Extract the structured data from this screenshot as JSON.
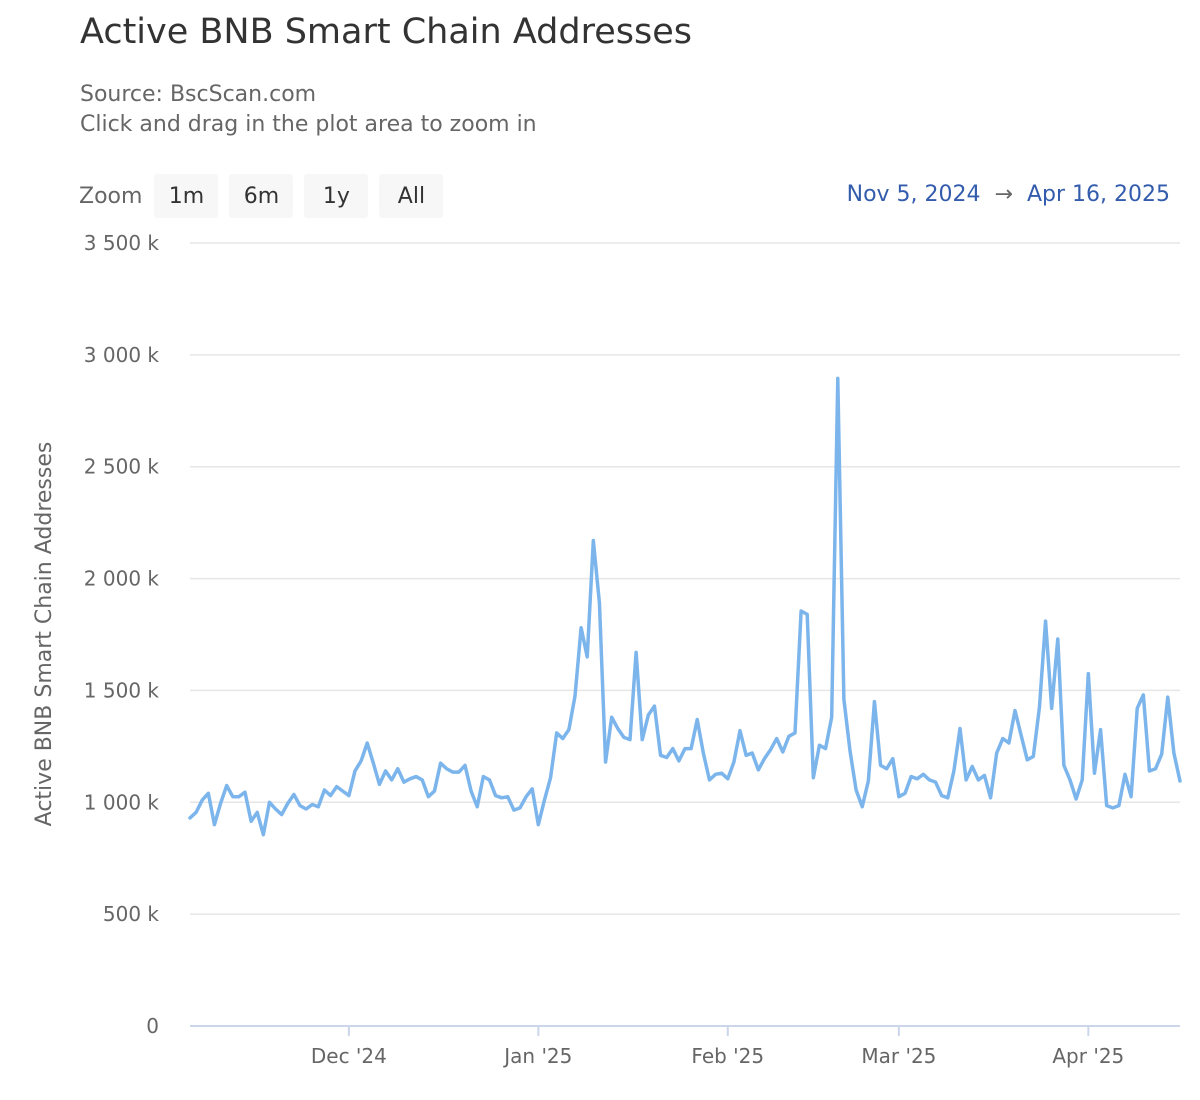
{
  "header": {
    "title": "Active BNB Smart Chain Addresses",
    "source": "Source: BscScan.com",
    "hint": "Click and drag in the plot area to zoom in"
  },
  "zoom": {
    "label": "Zoom",
    "buttons": [
      "1m",
      "6m",
      "1y",
      "All"
    ]
  },
  "range": {
    "from": "Nov 5, 2024",
    "arrow": "→",
    "to": "Apr 16, 2025"
  },
  "chart_data": {
    "type": "line",
    "title": "Active BNB Smart Chain Addresses",
    "subtitle": "Source: BscScan.com",
    "xlabel": "",
    "ylabel": "Active BNB Smart Chain Addresses",
    "x_start": "2024-11-05",
    "x_ticks": [
      {
        "label": "Dec '24",
        "date": "2024-12-01"
      },
      {
        "label": "Jan '25",
        "date": "2025-01-01"
      },
      {
        "label": "Feb '25",
        "date": "2025-02-01"
      },
      {
        "label": "Mar '25",
        "date": "2025-03-01"
      },
      {
        "label": "Apr '25",
        "date": "2025-04-01"
      }
    ],
    "y_ticks": [
      {
        "value": 0,
        "label": "0"
      },
      {
        "value": 500000,
        "label": "500 k"
      },
      {
        "value": 1000000,
        "label": "1 000 k"
      },
      {
        "value": 1500000,
        "label": "1 500 k"
      },
      {
        "value": 2000000,
        "label": "2 000 k"
      },
      {
        "value": 2500000,
        "label": "2 500 k"
      },
      {
        "value": 3000000,
        "label": "3 000 k"
      },
      {
        "value": 3500000,
        "label": "3 500 k"
      }
    ],
    "ylim": [
      0,
      3500000
    ],
    "grid": true,
    "legend": "none",
    "color": "#7cb5ec",
    "series": [
      {
        "values": [
          930000,
          955000,
          1010000,
          1040000,
          900000,
          995000,
          1075000,
          1025000,
          1025000,
          1045000,
          915000,
          955000,
          855000,
          1000000,
          970000,
          945000,
          995000,
          1035000,
          985000,
          970000,
          990000,
          980000,
          1055000,
          1030000,
          1070000,
          1050000,
          1030000,
          1140000,
          1185000,
          1265000,
          1175000,
          1080000,
          1140000,
          1100000,
          1150000,
          1090000,
          1105000,
          1115000,
          1100000,
          1025000,
          1050000,
          1175000,
          1150000,
          1135000,
          1135000,
          1165000,
          1050000,
          980000,
          1115000,
          1100000,
          1030000,
          1020000,
          1025000,
          965000,
          975000,
          1025000,
          1060000,
          900000,
          1010000,
          1110000,
          1310000,
          1285000,
          1325000,
          1475000,
          1780000,
          1650000,
          2170000,
          1890000,
          1180000,
          1380000,
          1330000,
          1290000,
          1280000,
          1670000,
          1280000,
          1390000,
          1430000,
          1210000,
          1200000,
          1240000,
          1185000,
          1240000,
          1240000,
          1370000,
          1220000,
          1100000,
          1125000,
          1130000,
          1105000,
          1180000,
          1320000,
          1210000,
          1220000,
          1145000,
          1195000,
          1235000,
          1285000,
          1225000,
          1295000,
          1310000,
          1855000,
          1840000,
          1110000,
          1255000,
          1240000,
          1380000,
          2895000,
          1460000,
          1230000,
          1055000,
          980000,
          1095000,
          1450000,
          1165000,
          1150000,
          1195000,
          1025000,
          1040000,
          1115000,
          1105000,
          1125000,
          1100000,
          1090000,
          1030000,
          1020000,
          1140000,
          1330000,
          1100000,
          1160000,
          1100000,
          1120000,
          1020000,
          1220000,
          1285000,
          1265000,
          1410000,
          1300000,
          1190000,
          1205000,
          1425000,
          1810000,
          1420000,
          1730000,
          1165000,
          1100000,
          1015000,
          1100000,
          1575000,
          1130000,
          1325000,
          985000,
          975000,
          985000,
          1125000,
          1025000,
          1420000,
          1480000,
          1140000,
          1150000,
          1215000,
          1470000,
          1220000,
          1095000
        ]
      }
    ]
  }
}
